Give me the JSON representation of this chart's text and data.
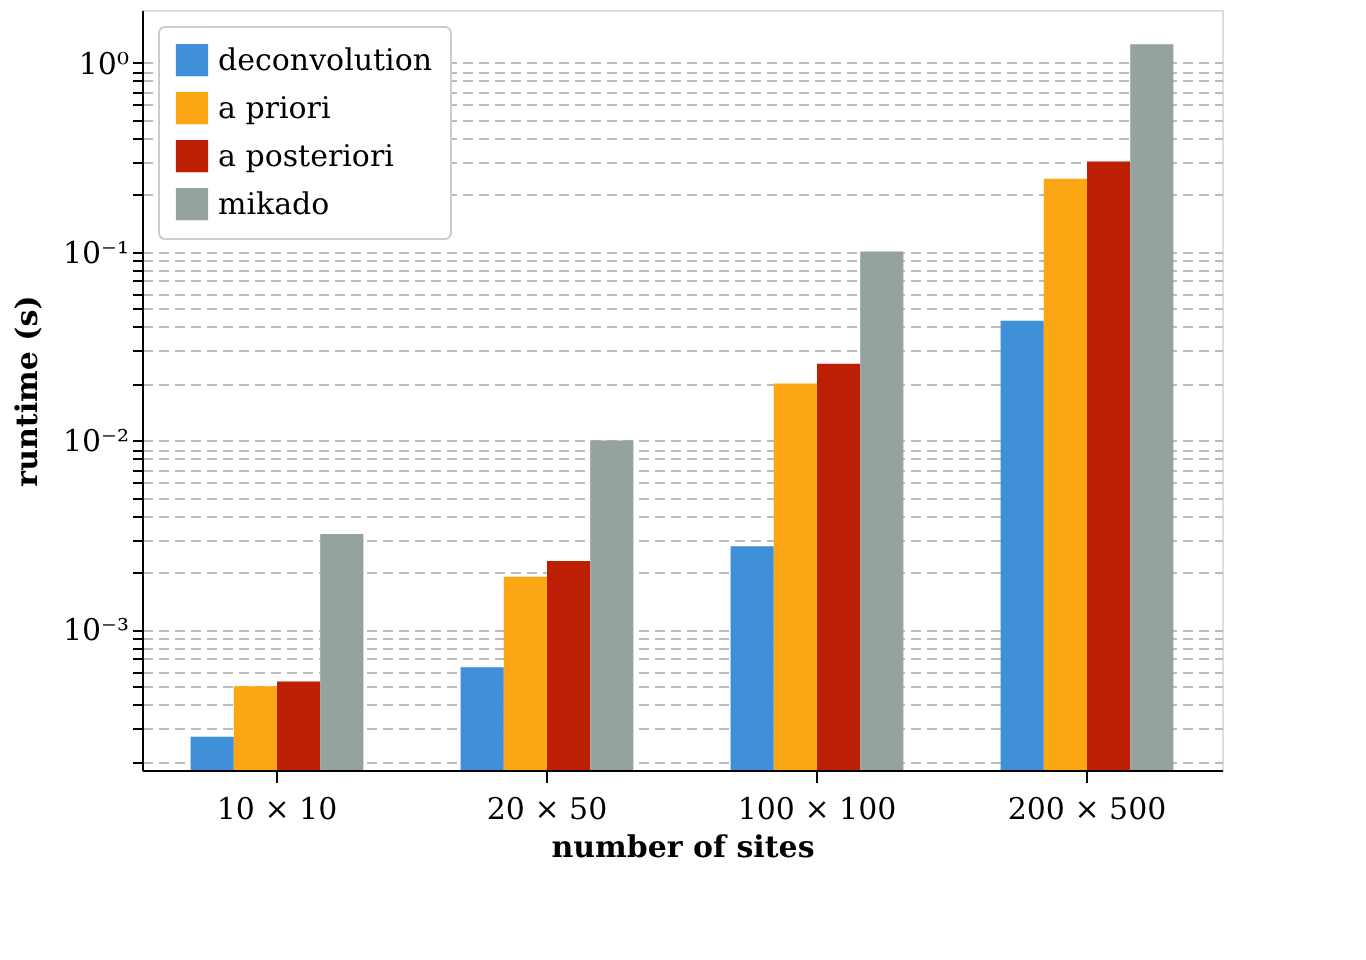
{
  "chart_data": {
    "type": "bar",
    "xlabel": "number of sites",
    "ylabel": "runtime (s)",
    "categories": [
      "10 × 10",
      "20 × 50",
      "100 × 100",
      "200 × 500"
    ],
    "series": [
      {
        "name": "deconvolution",
        "color": "#3f8fd9",
        "values": [
          0.00027,
          0.00063,
          0.00275,
          0.043
        ]
      },
      {
        "name": "a priori",
        "color": "#fda614",
        "values": [
          0.0005,
          0.0019,
          0.02,
          0.243
        ]
      },
      {
        "name": "a posteriori",
        "color": "#bc1f04",
        "values": [
          0.00053,
          0.0023,
          0.0255,
          0.3
        ]
      },
      {
        "name": "mikado",
        "color": "#94a3a0",
        "values": [
          0.0032,
          0.01,
          0.1,
          1.25
        ]
      }
    ],
    "log": "y",
    "ylim": [
      0.00018,
      1.9
    ],
    "yticks": [
      {
        "value": 0.0002,
        "label": null
      },
      {
        "value": 0.0003,
        "label": null
      },
      {
        "value": 0.0004,
        "label": null
      },
      {
        "value": 0.0005,
        "label": null
      },
      {
        "value": 0.0006,
        "label": null
      },
      {
        "value": 0.0007,
        "label": null
      },
      {
        "value": 0.0008,
        "label": null
      },
      {
        "value": 0.0009,
        "label": null
      },
      {
        "value": 0.001,
        "label": "10⁻³"
      },
      {
        "value": 0.002,
        "label": null
      },
      {
        "value": 0.003,
        "label": null
      },
      {
        "value": 0.004,
        "label": null
      },
      {
        "value": 0.005,
        "label": null
      },
      {
        "value": 0.006,
        "label": null
      },
      {
        "value": 0.007,
        "label": null
      },
      {
        "value": 0.008,
        "label": null
      },
      {
        "value": 0.009,
        "label": null
      },
      {
        "value": 0.01,
        "label": "10⁻²"
      },
      {
        "value": 0.02,
        "label": null
      },
      {
        "value": 0.03,
        "label": null
      },
      {
        "value": 0.04,
        "label": null
      },
      {
        "value": 0.05,
        "label": null
      },
      {
        "value": 0.06,
        "label": null
      },
      {
        "value": 0.07,
        "label": null
      },
      {
        "value": 0.08,
        "label": null
      },
      {
        "value": 0.09,
        "label": null
      },
      {
        "value": 0.1,
        "label": "10⁻¹"
      },
      {
        "value": 0.2,
        "label": null
      },
      {
        "value": 0.3,
        "label": null
      },
      {
        "value": 0.4,
        "label": null
      },
      {
        "value": 0.5,
        "label": null
      },
      {
        "value": 0.6,
        "label": null
      },
      {
        "value": 0.7,
        "label": null
      },
      {
        "value": 0.8,
        "label": null
      },
      {
        "value": 0.9,
        "label": null
      },
      {
        "value": 1,
        "label": "10⁰"
      }
    ],
    "grid": "y",
    "legend": "top left"
  }
}
